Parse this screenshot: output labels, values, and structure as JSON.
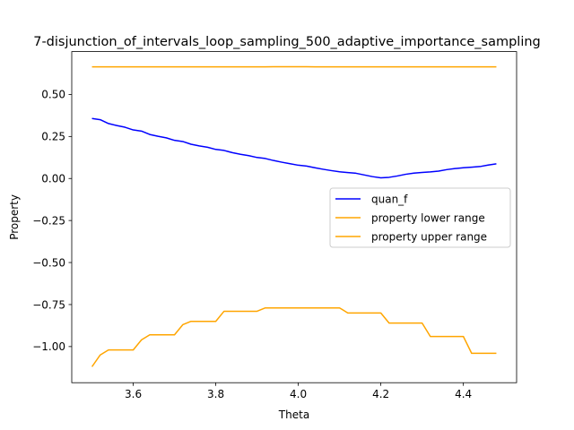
{
  "chart_data": {
    "type": "line",
    "title": "7-disjunction_of_intervals_loop_sampling_500_adaptive_importance_sampling",
    "xlabel": "Theta",
    "ylabel": "Property",
    "xlim": [
      3.451,
      4.529
    ],
    "ylim": [
      -1.215,
      0.755
    ],
    "xticks": [
      3.6,
      3.8,
      4.0,
      4.2,
      4.4
    ],
    "xtick_labels": [
      "3.6",
      "3.8",
      "4.0",
      "4.2",
      "4.4"
    ],
    "yticks": [
      0.5,
      0.25,
      0.0,
      -0.25,
      -0.5,
      -0.75,
      -1.0
    ],
    "ytick_labels": [
      "0.50",
      "0.25",
      "0.00",
      "−0.25",
      "−0.50",
      "−0.75",
      "−1.00"
    ],
    "grid": false,
    "legend_position": "center-right",
    "x": [
      3.5,
      3.52,
      3.54,
      3.56,
      3.58,
      3.6,
      3.62,
      3.64,
      3.66,
      3.68,
      3.7,
      3.72,
      3.74,
      3.76,
      3.78,
      3.8,
      3.82,
      3.84,
      3.86,
      3.88,
      3.9,
      3.92,
      3.94,
      3.96,
      3.98,
      4.0,
      4.02,
      4.04,
      4.06,
      4.08,
      4.1,
      4.12,
      4.14,
      4.16,
      4.18,
      4.2,
      4.22,
      4.24,
      4.26,
      4.28,
      4.3,
      4.32,
      4.34,
      4.36,
      4.38,
      4.4,
      4.42,
      4.44,
      4.46,
      4.48
    ],
    "series": [
      {
        "name": "quan_f",
        "color": "#0000ff",
        "values": [
          0.357,
          0.35,
          0.327,
          0.315,
          0.305,
          0.289,
          0.282,
          0.262,
          0.251,
          0.242,
          0.227,
          0.22,
          0.204,
          0.194,
          0.186,
          0.173,
          0.167,
          0.154,
          0.144,
          0.136,
          0.125,
          0.119,
          0.107,
          0.097,
          0.088,
          0.079,
          0.074,
          0.064,
          0.055,
          0.047,
          0.04,
          0.035,
          0.031,
          0.021,
          0.011,
          0.004,
          0.007,
          0.015,
          0.025,
          0.032,
          0.036,
          0.039,
          0.044,
          0.053,
          0.059,
          0.064,
          0.067,
          0.071,
          0.08,
          0.087
        ]
      },
      {
        "name": "property lower range",
        "color": "#ffa500",
        "values": [
          -1.12,
          -1.05,
          -1.02,
          -1.02,
          -1.02,
          -1.02,
          -0.96,
          -0.93,
          -0.93,
          -0.93,
          -0.93,
          -0.87,
          -0.85,
          -0.85,
          -0.85,
          -0.85,
          -0.79,
          -0.79,
          -0.79,
          -0.79,
          -0.79,
          -0.77,
          -0.77,
          -0.77,
          -0.77,
          -0.77,
          -0.77,
          -0.77,
          -0.77,
          -0.77,
          -0.77,
          -0.8,
          -0.8,
          -0.8,
          -0.8,
          -0.8,
          -0.86,
          -0.86,
          -0.86,
          -0.86,
          -0.86,
          -0.94,
          -0.94,
          -0.94,
          -0.94,
          -0.94,
          -1.04,
          -1.04,
          -1.04,
          -1.04
        ]
      },
      {
        "name": "property upper range",
        "color": "#ffa500",
        "values": [
          0.664,
          0.664,
          0.664,
          0.664,
          0.664,
          0.664,
          0.664,
          0.664,
          0.664,
          0.664,
          0.664,
          0.664,
          0.664,
          0.664,
          0.664,
          0.664,
          0.664,
          0.664,
          0.664,
          0.664,
          0.664,
          0.664,
          0.665,
          0.665,
          0.665,
          0.665,
          0.665,
          0.664,
          0.664,
          0.664,
          0.664,
          0.664,
          0.664,
          0.664,
          0.664,
          0.664,
          0.664,
          0.664,
          0.664,
          0.664,
          0.664,
          0.664,
          0.664,
          0.664,
          0.664,
          0.664,
          0.664,
          0.664,
          0.664,
          0.664
        ]
      }
    ]
  }
}
